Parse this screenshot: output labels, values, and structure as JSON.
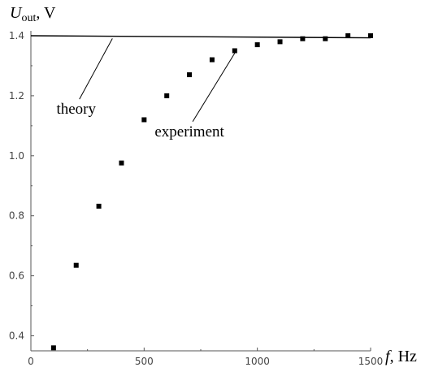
{
  "chart_data": {
    "type": "scatter",
    "xlabel": {
      "symbol": "f",
      "unit": ", Hz"
    },
    "ylabel": {
      "symbol": "U",
      "subscript": "out",
      "unit": ", V"
    },
    "xlim": [
      0,
      1500
    ],
    "ylim": [
      0.35,
      1.4
    ],
    "x_ticks": [
      0,
      500,
      1000,
      1500
    ],
    "x_tick_labels": [
      "0",
      "500",
      "1000",
      "1500"
    ],
    "y_ticks": [
      0.4,
      0.6,
      0.8,
      1.0,
      1.2,
      1.4
    ],
    "y_tick_labels": [
      "0.4",
      "0.6",
      "0.8",
      "1.0",
      "1.2",
      "1.4"
    ],
    "grid": false,
    "series": [
      {
        "name": "theory",
        "kind": "line",
        "x": [
          0,
          1500
        ],
        "y": [
          1.4,
          1.393
        ]
      },
      {
        "name": "experiment",
        "kind": "points",
        "x": [
          100,
          200,
          300,
          400,
          500,
          600,
          700,
          800,
          900,
          1000,
          1100,
          1200,
          1300,
          1400,
          1500
        ],
        "y": [
          0.36,
          0.635,
          0.832,
          0.976,
          1.12,
          1.2,
          1.27,
          1.32,
          1.35,
          1.37,
          1.38,
          1.39,
          1.39,
          1.4,
          1.4
        ]
      }
    ],
    "annotations": [
      {
        "text": "theory",
        "target_series": "theory",
        "target_x": 360,
        "target_y": 1.399,
        "label_x": 200,
        "label_y": 1.14
      },
      {
        "text": "experiment",
        "target_series": "experiment",
        "target_x": 900,
        "target_y": 1.35,
        "label_x": 700,
        "label_y": 1.065
      }
    ],
    "colors": {
      "axis": "#555555",
      "line": "#000000",
      "points": "#000000",
      "annot_leader": "#000000"
    }
  }
}
